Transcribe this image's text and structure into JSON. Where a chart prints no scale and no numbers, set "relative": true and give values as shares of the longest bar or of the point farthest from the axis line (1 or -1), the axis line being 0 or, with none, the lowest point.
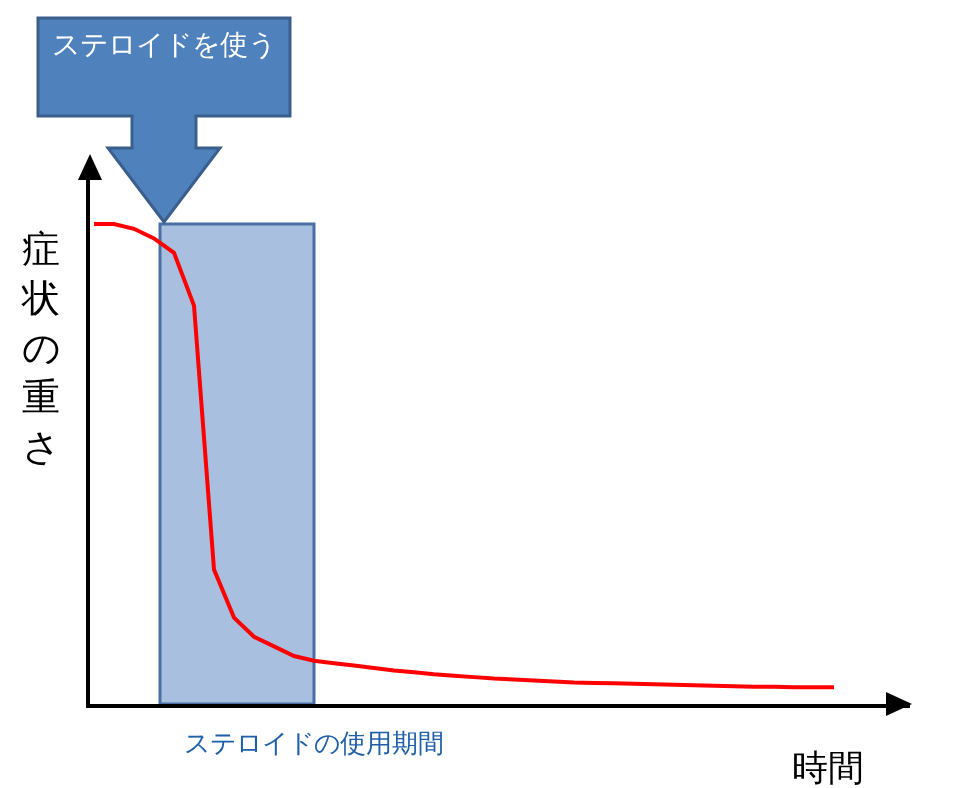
{
  "chart_data": {
    "type": "line",
    "relative": true,
    "ylabel": "症状の重さ",
    "xlabel": "時間",
    "categories": [
      null,
      null,
      null,
      null,
      null,
      null,
      null,
      null,
      null,
      null,
      null,
      null,
      null,
      null,
      null,
      null,
      null,
      null,
      null,
      null,
      null,
      null,
      null,
      null,
      null,
      null,
      null,
      null,
      null,
      null,
      null,
      null,
      null,
      null,
      null,
      null,
      null,
      null
    ],
    "marker": "none",
    "line_style": "solid",
    "series": [
      {
        "color": "#ff0000",
        "values": [
          1.0,
          1.0,
          0.99,
          0.97,
          0.94,
          0.83,
          0.28,
          0.18,
          0.14,
          0.12,
          0.1,
          0.09,
          0.085,
          0.08,
          0.075,
          0.07,
          0.066,
          0.062,
          0.059,
          0.056,
          0.053,
          0.051,
          0.049,
          0.047,
          0.045,
          0.044,
          0.043,
          0.042,
          0.041,
          0.04,
          0.039,
          0.038,
          0.037,
          0.036,
          0.036,
          0.035,
          0.035,
          0.035
        ]
      }
    ],
    "annotations": [
      "ステロイドを使う",
      "ステロイドの使用期間"
    ]
  }
}
